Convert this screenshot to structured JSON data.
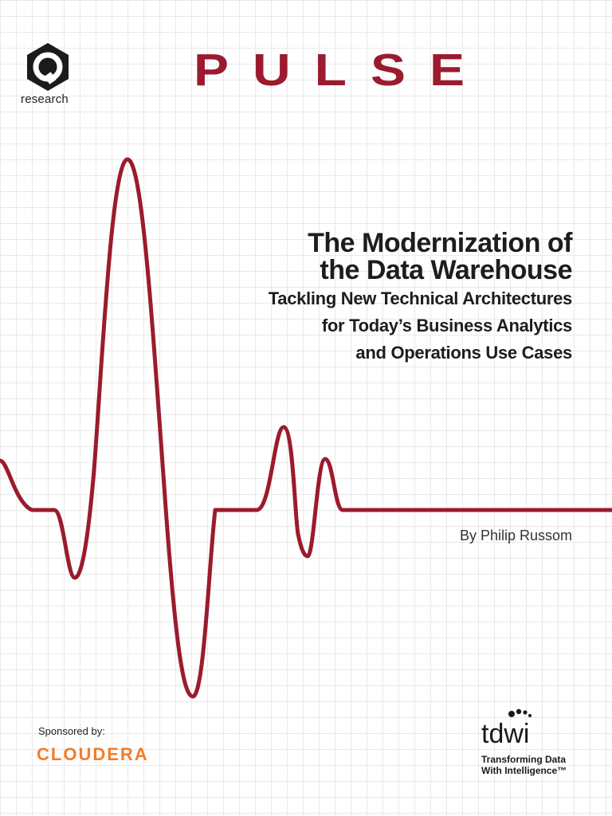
{
  "brand": {
    "logo_label": "research",
    "wordmark": "PULSE"
  },
  "report": {
    "title_lines": [
      "The Modernization of",
      "the Data Warehouse"
    ],
    "subtitle_lines": [
      "Tackling New Technical Architectures",
      "for Today’s Business Analytics",
      "and Operations Use Cases"
    ],
    "author": "By Philip Russom"
  },
  "sponsor": {
    "label": "Sponsored by:",
    "name": "CLOUDERA"
  },
  "publisher": {
    "name": "tdwi",
    "tagline_lines": [
      "Transforming Data",
      "With Intelligence™"
    ]
  },
  "colors": {
    "accent": "#9b1b2e",
    "sponsor_orange": "#f47b2a",
    "text": "#1d1d1d"
  }
}
